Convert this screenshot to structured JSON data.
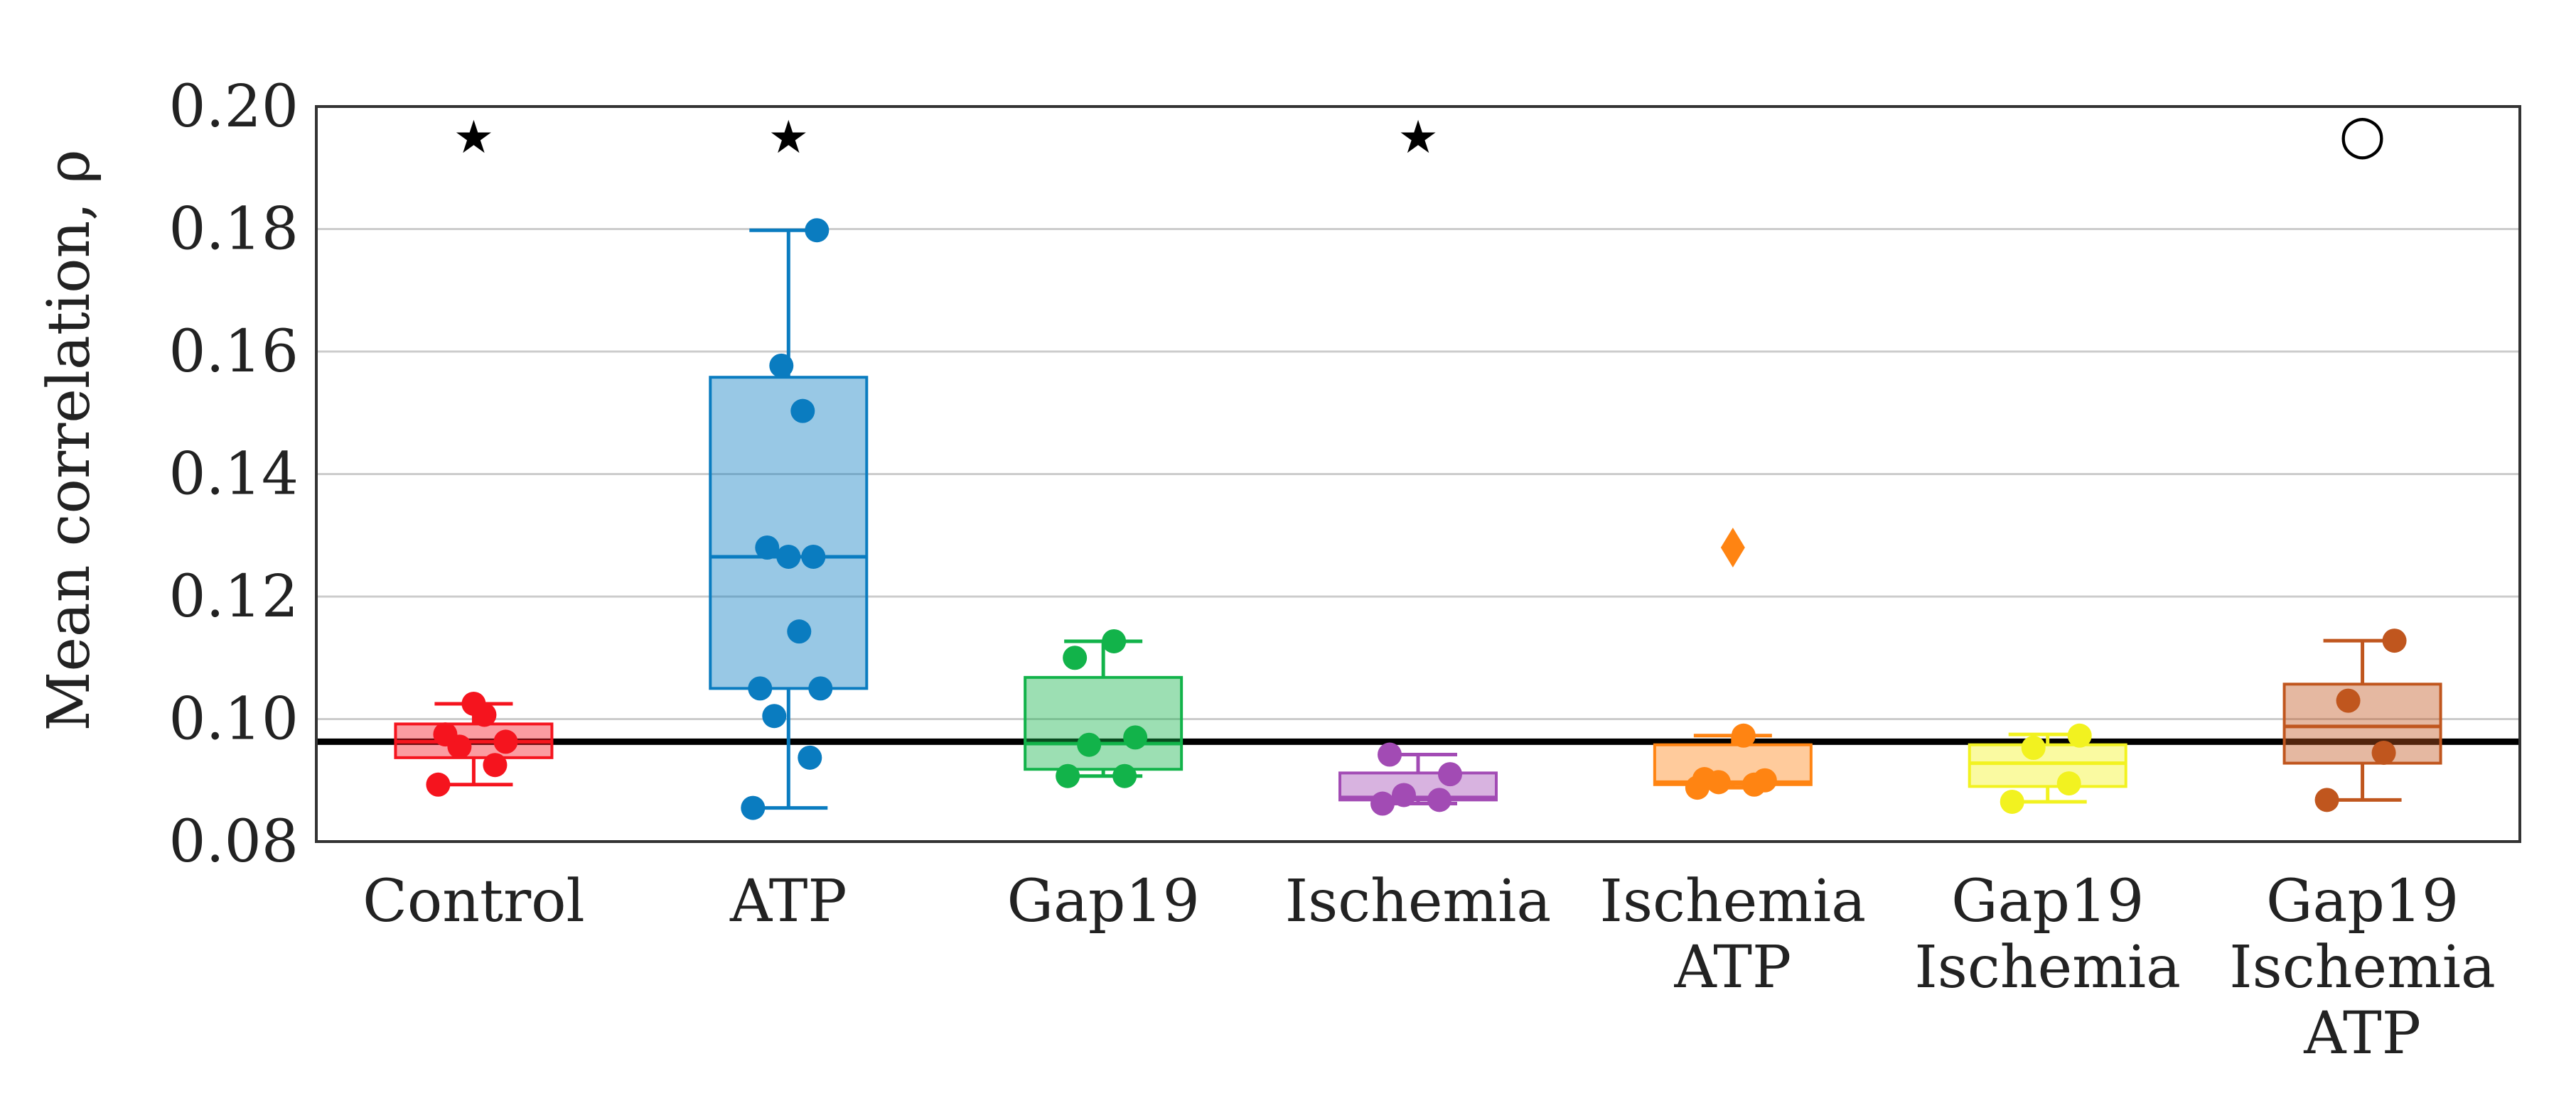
{
  "chart_data": {
    "type": "box",
    "ylabel": "Mean correlation, ρ",
    "ylim": [
      0.08,
      0.2
    ],
    "yticks": [
      "0.08",
      "0.10",
      "0.12",
      "0.14",
      "0.16",
      "0.18",
      "0.20"
    ],
    "grid": true,
    "reference_line": 0.0963,
    "groups": [
      {
        "label_lines": [
          "Control"
        ],
        "color": "#f5141e",
        "box": {
          "q1": 0.0937,
          "median": 0.0963,
          "q3": 0.0992,
          "whisker_low": 0.0893,
          "whisker_high": 0.1025
        },
        "points": [
          0.0893,
          0.0925,
          0.0955,
          0.0963,
          0.0975,
          0.1007,
          0.1025
        ],
        "outliers": [],
        "marker": "star"
      },
      {
        "label_lines": [
          "ATP"
        ],
        "color": "#0a7cc0",
        "box": {
          "q1": 0.105,
          "median": 0.1265,
          "q3": 0.1558,
          "whisker_low": 0.0855,
          "whisker_high": 0.1798
        },
        "points": [
          0.0855,
          0.0937,
          0.1005,
          0.105,
          0.105,
          0.1143,
          0.1265,
          0.1265,
          0.128,
          0.1503,
          0.1577,
          0.1798
        ],
        "outliers": [],
        "marker": "star"
      },
      {
        "label_lines": [
          "Gap19"
        ],
        "color": "#12b34a",
        "box": {
          "q1": 0.0918,
          "median": 0.096,
          "q3": 0.1068,
          "whisker_low": 0.0907,
          "whisker_high": 0.1127
        },
        "points": [
          0.0907,
          0.0907,
          0.0958,
          0.097,
          0.11,
          0.1127
        ],
        "outliers": [],
        "marker": "none"
      },
      {
        "label_lines": [
          "Ischemia"
        ],
        "color": "#a24bb4",
        "box": {
          "q1": 0.0868,
          "median": 0.0872,
          "q3": 0.0912,
          "whisker_low": 0.0862,
          "whisker_high": 0.0942
        },
        "points": [
          0.0862,
          0.0868,
          0.0876,
          0.091,
          0.0942
        ],
        "outliers": [],
        "marker": "star"
      },
      {
        "label_lines": [
          "Ischemia",
          "ATP"
        ],
        "color": "#ff8412",
        "box": {
          "q1": 0.0893,
          "median": 0.0897,
          "q3": 0.0958,
          "whisker_low": 0.0888,
          "whisker_high": 0.0973
        },
        "points": [
          0.0888,
          0.0893,
          0.0897,
          0.09,
          0.0902,
          0.0973
        ],
        "outliers": [
          0.128
        ],
        "marker": "none"
      },
      {
        "label_lines": [
          "Gap19",
          "Ischemia"
        ],
        "color": "#f2f220",
        "box": {
          "q1": 0.089,
          "median": 0.0928,
          "q3": 0.0958,
          "whisker_low": 0.0865,
          "whisker_high": 0.0975
        },
        "points": [
          0.0865,
          0.0895,
          0.0953,
          0.0973
        ],
        "outliers": [],
        "marker": "none"
      },
      {
        "label_lines": [
          "Gap19",
          "Ischemia",
          "ATP"
        ],
        "color": "#c0561e",
        "box": {
          "q1": 0.0928,
          "median": 0.0988,
          "q3": 0.1057,
          "whisker_low": 0.0868,
          "whisker_high": 0.1128
        },
        "points": [
          0.0868,
          0.0945,
          0.103,
          0.1128
        ],
        "outliers": [],
        "marker": "circle"
      }
    ],
    "significance_markers": {
      "star": "★",
      "circle": "○"
    }
  }
}
